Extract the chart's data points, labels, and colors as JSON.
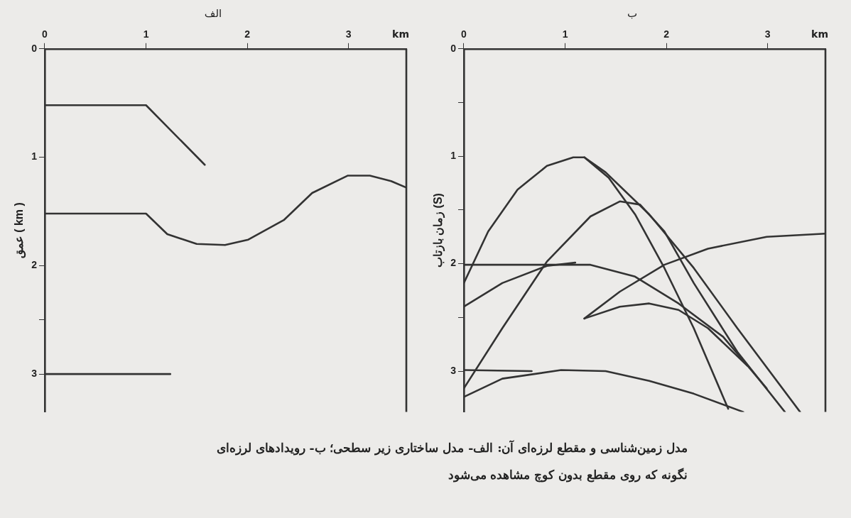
{
  "chart_data": [
    {
      "type": "line",
      "title": "الف",
      "xlabel": "km",
      "ylabel": "عمق ( km )",
      "xlim": [
        0,
        3.57
      ],
      "ylim": [
        3.35,
        0
      ],
      "xticks": [
        0,
        1,
        2,
        3
      ],
      "yticks": [
        0,
        1,
        2,
        {
          "value": 2.5,
          "label": null
        },
        3
      ],
      "grid": false,
      "legend": false,
      "marker": "none",
      "line_style": "solid",
      "series": [
        {
          "color": "#333333",
          "x": [
            0,
            1,
            1.58
          ],
          "values": [
            0.52,
            0.52,
            1.07
          ]
        },
        {
          "color": "#333333",
          "x": [
            0,
            1,
            1.21,
            1.5,
            1.78,
            2.01,
            2.36,
            2.64,
            2.99,
            3.21,
            3.42,
            3.57
          ],
          "values": [
            1.52,
            1.52,
            1.71,
            1.8,
            1.81,
            1.76,
            1.58,
            1.33,
            1.17,
            1.17,
            1.22,
            1.28
          ]
        },
        {
          "color": "#333333",
          "x": [
            0,
            1.24
          ],
          "values": [
            3.0,
            3.0
          ]
        }
      ]
    },
    {
      "type": "line",
      "title": "ب",
      "xlabel": "km",
      "ylabel": "زمان بازتاب (S)",
      "xlim": [
        0,
        3.57
      ],
      "ylim": [
        3.38,
        0
      ],
      "xticks": [
        0,
        1,
        2,
        3
      ],
      "yticks": [
        0,
        {
          "value": 0.5,
          "label": null
        },
        1,
        {
          "value": 1.5,
          "label": null
        },
        2,
        {
          "value": 2.5,
          "label": null
        },
        3
      ],
      "grid": false,
      "legend": false,
      "marker": "none",
      "line_style": "solid",
      "annotations": [
        "مدل زمین‌شناسی و مقطع لرزه‌ای آن: الف- مدل ساختاری زیر سطحی؛ ب- رویدادهای لرزه‌ای",
        "نگونه که روی مقطع بدون کوچ مشاهده می‌شود"
      ],
      "series": [
        {
          "color": "#333333",
          "x": [
            0,
            0.24,
            0.53,
            0.82,
            1.08,
            1.19,
            1.4,
            1.83,
            2.27,
            2.7,
            3.32
          ],
          "values": [
            2.18,
            1.7,
            1.31,
            1.09,
            1.01,
            1.01,
            1.15,
            1.54,
            2.04,
            2.6,
            3.38
          ]
        },
        {
          "color": "#333333",
          "x": [
            1.19,
            1.43,
            1.69,
            1.98,
            2.27,
            2.61
          ],
          "values": [
            1.01,
            1.2,
            1.54,
            2.04,
            2.6,
            3.35
          ]
        },
        {
          "color": "#333333",
          "x": [
            0,
            0.38,
            0.82,
            1.25,
            1.54,
            1.74,
            1.98,
            2.27,
            2.7,
            3.17
          ],
          "values": [
            3.16,
            2.6,
            1.98,
            1.56,
            1.42,
            1.45,
            1.7,
            2.18,
            2.82,
            3.38
          ]
        },
        {
          "color": "#333333",
          "x": [
            0,
            1.25,
            1.69,
            2.12,
            2.56,
            2.99
          ],
          "values": [
            2.01,
            2.01,
            2.12,
            2.37,
            2.68,
            3.16
          ]
        },
        {
          "color": "#333333",
          "x": [
            0,
            0.38,
            0.82,
            1.1
          ],
          "values": [
            2.4,
            2.18,
            2.02,
            1.99
          ]
        },
        {
          "color": "#333333",
          "x": [
            1.19,
            1.54,
            1.98,
            2.41,
            2.99,
            3.57
          ],
          "values": [
            2.51,
            2.26,
            2.01,
            1.86,
            1.75,
            1.72
          ]
        },
        {
          "color": "#333333",
          "x": [
            1.19,
            1.54,
            1.83,
            2.12,
            2.41,
            2.8
          ],
          "values": [
            2.51,
            2.4,
            2.37,
            2.43,
            2.6,
            2.95
          ]
        },
        {
          "color": "#333333",
          "x": [
            0,
            0.67
          ],
          "values": [
            2.99,
            3.0
          ]
        },
        {
          "color": "#333333",
          "x": [
            0,
            0.38,
            0.96,
            1.4,
            1.83,
            2.27,
            2.76
          ],
          "values": [
            3.24,
            3.07,
            2.99,
            3.0,
            3.09,
            3.21,
            3.38
          ]
        }
      ]
    }
  ]
}
